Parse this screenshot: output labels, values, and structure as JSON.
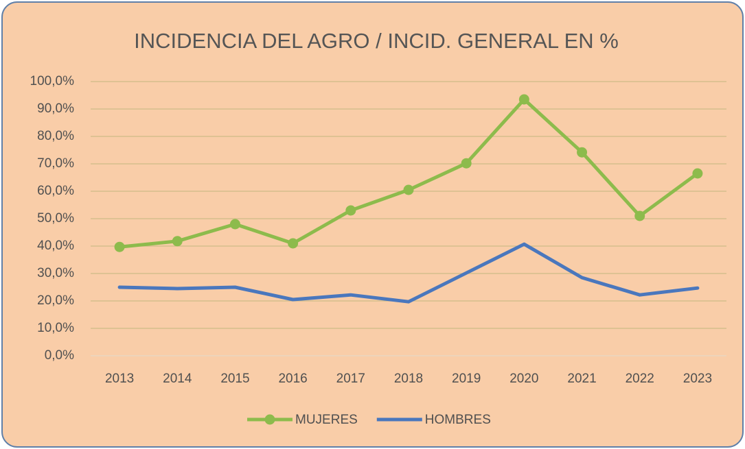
{
  "chart_data": {
    "type": "line",
    "title": "INCIDENCIA DEL AGRO / INCID. GENERAL EN %",
    "categories": [
      "2013",
      "2014",
      "2015",
      "2016",
      "2017",
      "2018",
      "2019",
      "2020",
      "2021",
      "2022",
      "2023"
    ],
    "series": [
      {
        "name": "MUJERES",
        "color": "#8dbb4c",
        "markers": true,
        "values": [
          39.7,
          41.8,
          48.0,
          41.0,
          53.0,
          60.5,
          70.2,
          93.5,
          74.2,
          51.0,
          66.5
        ]
      },
      {
        "name": "HOMBRES",
        "color": "#4a77bd",
        "markers": false,
        "values": [
          25.0,
          24.5,
          25.0,
          20.5,
          22.2,
          19.7,
          30.2,
          40.7,
          28.5,
          22.2,
          24.7
        ]
      }
    ],
    "ylim": [
      0,
      100
    ],
    "yticks": [
      {
        "value": 0,
        "label": "0,0%"
      },
      {
        "value": 10,
        "label": "10,0%"
      },
      {
        "value": 20,
        "label": "20,0%"
      },
      {
        "value": 30,
        "label": "30,0%"
      },
      {
        "value": 40,
        "label": "40,0%"
      },
      {
        "value": 50,
        "label": "50,0%"
      },
      {
        "value": 60,
        "label": "60,0%"
      },
      {
        "value": 70,
        "label": "70,0%"
      },
      {
        "value": 80,
        "label": "80,0%"
      },
      {
        "value": 90,
        "label": "90,0%"
      },
      {
        "value": 100,
        "label": "100,0%"
      }
    ],
    "grid": true,
    "legend": "bottom"
  }
}
